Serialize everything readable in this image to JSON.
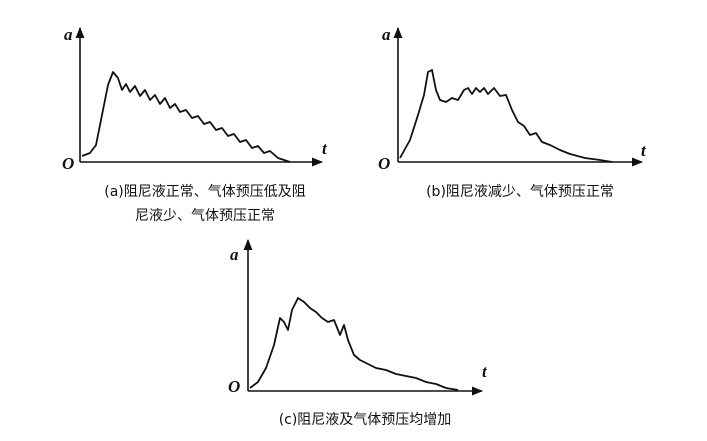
{
  "panels": [
    {
      "y_label": "a",
      "x_label": "t",
      "origin": "O",
      "caption_lines": [
        "(a)阻尼液正常、气体预压低及阻",
        "尼液少、气体预压正常"
      ]
    },
    {
      "y_label": "a",
      "x_label": "t",
      "origin": "O",
      "caption_lines": [
        "(b)阻尼液减少、气体预压正常"
      ]
    },
    {
      "y_label": "a",
      "x_label": "t",
      "origin": "O",
      "caption_lines": [
        "(c)阻尼液及气体预压均增加"
      ]
    }
  ]
}
